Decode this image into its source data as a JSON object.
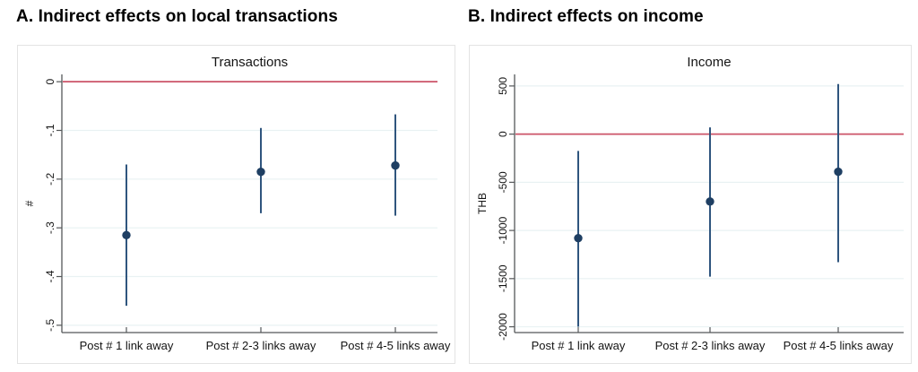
{
  "figure": {
    "background": "#ffffff",
    "heading_color": "#000000"
  },
  "panels": [
    {
      "heading": "A. Indirect effects on local transactions"
    },
    {
      "heading": "B. Indirect effects on income"
    }
  ],
  "chart_data": [
    {
      "type": "scatter",
      "subtype": "coefficient-plot-with-95ci",
      "title": "Transactions",
      "xlabel": "",
      "ylabel": "#",
      "categories": [
        "Post # 1 link away",
        "Post # 2-3 links away",
        "Post # 4-5 links away"
      ],
      "estimates": [
        -0.315,
        -0.185,
        -0.172
      ],
      "ci_low": [
        -0.46,
        -0.27,
        -0.275
      ],
      "ci_high": [
        -0.17,
        -0.095,
        -0.067
      ],
      "yticks": [
        0,
        -0.1,
        -0.2,
        -0.3,
        -0.4,
        -0.5
      ],
      "ytick_labels": [
        "0",
        "-.1",
        "-.2",
        "-.3",
        "-.4",
        "-.5"
      ],
      "ylim": [
        0.015,
        -0.515
      ],
      "ref_line_y": 0,
      "grid": true,
      "legend": "none",
      "colors": {
        "marker": "#1f3f63",
        "ci": "#2f557e",
        "ref_line": "#cc5468",
        "grid": "#e9f2f3",
        "axis": "#545759",
        "title": "#2d4270",
        "tick_label": "#141414"
      }
    },
    {
      "type": "scatter",
      "subtype": "coefficient-plot-with-95ci",
      "title": "Income",
      "xlabel": "",
      "ylabel": "THB",
      "categories": [
        "Post # 1 link away",
        "Post # 2-3 links away",
        "Post # 4-5 links away"
      ],
      "estimates": [
        -1080,
        -700,
        -390
      ],
      "ci_low": [
        -2000,
        -1480,
        -1330
      ],
      "ci_high": [
        -175,
        70,
        520
      ],
      "yticks": [
        500,
        0,
        -500,
        -1000,
        -1500,
        -2000
      ],
      "ytick_labels": [
        "500",
        "0",
        "-500",
        "-1000",
        "-1500",
        "-2000"
      ],
      "ylim": [
        620,
        -2060
      ],
      "ref_line_y": 0,
      "grid": true,
      "legend": "none",
      "colors": {
        "marker": "#1f3f63",
        "ci": "#2f557e",
        "ref_line": "#cc5468",
        "grid": "#e9f2f3",
        "axis": "#545759",
        "title": "#2d4270",
        "tick_label": "#141414"
      }
    }
  ]
}
